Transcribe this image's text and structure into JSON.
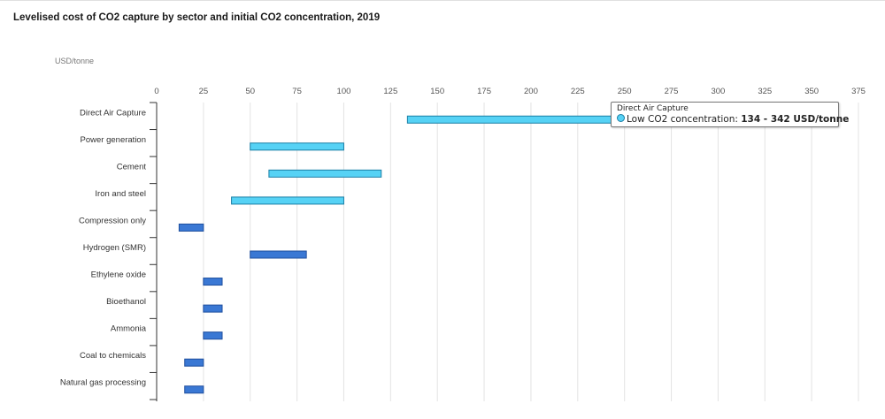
{
  "title": "Levelised cost of CO2 capture by sector and initial CO2 concentration, 2019",
  "unit_label": "USD/tonne",
  "colors": {
    "low_concentration": "#56d2f5",
    "low_concentration_stroke": "#1b7fa6",
    "high_concentration": "#3a78d4",
    "high_concentration_stroke": "#1f4f9e",
    "grid": "#e3e3e3"
  },
  "chart_data": {
    "type": "bar",
    "orientation": "horizontal-range",
    "xlim": [
      0,
      375
    ],
    "x_ticks": [
      0,
      25,
      50,
      75,
      100,
      125,
      150,
      175,
      200,
      225,
      250,
      275,
      300,
      325,
      350,
      375
    ],
    "grid": true,
    "categories": [
      "Direct Air Capture",
      "Power generation",
      "Cement",
      "Iron and steel",
      "Compression only",
      "Hydrogen (SMR)",
      "Ethylene oxide",
      "Bioethanol",
      "Ammonia",
      "Coal to chemicals",
      "Natural gas processing"
    ],
    "series": [
      {
        "name": "Low CO2 concentration",
        "color": "#56d2f5",
        "ranges": [
          [
            134,
            342
          ],
          [
            50,
            100
          ],
          [
            60,
            120
          ],
          [
            40,
            100
          ],
          null,
          null,
          null,
          null,
          null,
          null,
          null
        ]
      },
      {
        "color": "#3a78d4",
        "ranges": [
          null,
          null,
          null,
          null,
          [
            12,
            25
          ],
          [
            50,
            80
          ],
          [
            25,
            35
          ],
          [
            25,
            35
          ],
          [
            25,
            35
          ],
          [
            15,
            25
          ],
          [
            15,
            25
          ]
        ]
      }
    ]
  },
  "tooltip": {
    "title": "Direct Air Capture",
    "series_label": "Low CO2 concentration: ",
    "value": "134 - 342 USD/tonne"
  }
}
